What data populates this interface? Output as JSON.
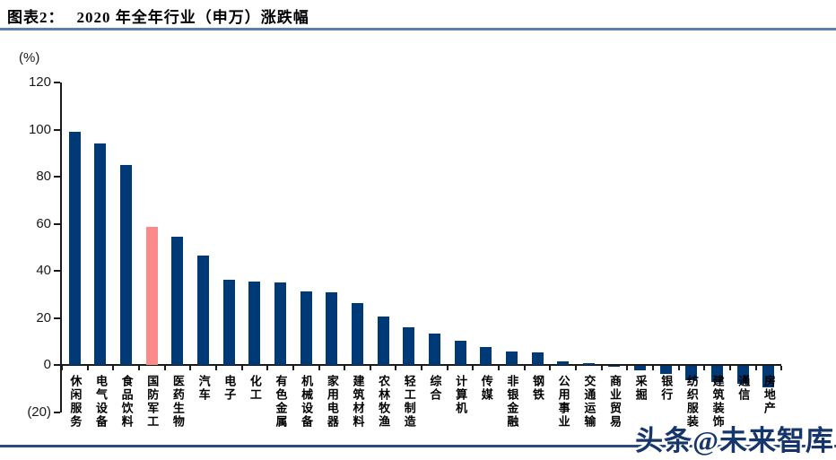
{
  "header": {
    "figure_label": "图表2：",
    "figure_title": "2020 年全年行业（申万）涨跌幅"
  },
  "watermark": {
    "text": "头条@未来智库"
  },
  "colors": {
    "bar": "#003a76",
    "highlight_bar": "#fc8a8a",
    "axis": "#1a1a1a",
    "title_rule": "#5b80ab",
    "footer_rule": "#2b4a7d",
    "watermark": "#16366b"
  },
  "chart_data": {
    "type": "bar",
    "title": "2020 年全年行业（申万）涨跌幅",
    "unit_label": "(%)",
    "xlabel": "",
    "ylabel": "(%)",
    "ylim": [
      -20,
      120
    ],
    "grid": false,
    "legend": "none",
    "yticks": [
      {
        "v": 120,
        "label": "120"
      },
      {
        "v": 100,
        "label": "100"
      },
      {
        "v": 80,
        "label": "80"
      },
      {
        "v": 60,
        "label": "60"
      },
      {
        "v": 40,
        "label": "40"
      },
      {
        "v": 20,
        "label": "20"
      },
      {
        "v": 0,
        "label": "0"
      },
      {
        "v": -20,
        "label": "(20)"
      }
    ],
    "categories": [
      "休闲服务",
      "电气设备",
      "食品饮料",
      "国防军工",
      "医药生物",
      "汽车",
      "电子",
      "化工",
      "有色金属",
      "机械设备",
      "家用电器",
      "建筑材料",
      "农林牧渔",
      "轻工制造",
      "综合",
      "计算机",
      "传媒",
      "非银金融",
      "钢铁",
      "公用事业",
      "交通运输",
      "商业贸易",
      "采掘",
      "银行",
      "纺织服装",
      "建筑装饰",
      "通信",
      "房地产"
    ],
    "values": [
      99,
      94,
      85,
      58.5,
      54.5,
      46.4,
      36.3,
      35.4,
      34.9,
      31.3,
      30.9,
      26.2,
      20.4,
      16.0,
      13.4,
      10.3,
      7.7,
      5.6,
      5.3,
      1.6,
      0.8,
      -0.5,
      -1.8,
      -3.4,
      -6.0,
      -7.0,
      -7.5,
      -9.0
    ],
    "highlight_index": 3,
    "highlight_category": "国防军工"
  }
}
